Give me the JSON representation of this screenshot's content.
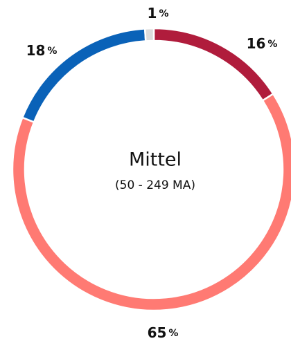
{
  "chart_data": {
    "type": "donut",
    "center_title": "Mittel",
    "center_subtitle": "(50 - 249 MA)",
    "categories": [
      null,
      null,
      null,
      null
    ],
    "values": [
      16,
      65,
      18,
      1
    ],
    "unit": "%",
    "colors": [
      "#b01c3c",
      "#ff7a73",
      "#0a62b8",
      "#dcdcdc"
    ]
  }
}
